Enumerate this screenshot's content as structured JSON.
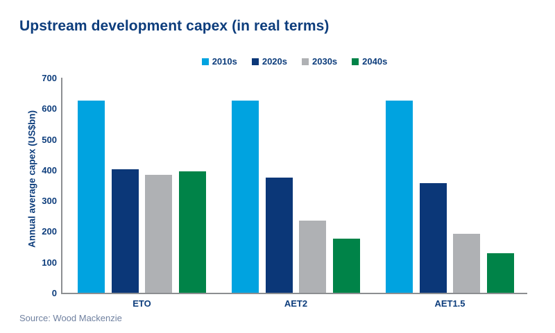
{
  "title": "Upstream development capex (in real terms)",
  "source": "Source: Wood Mackenzie",
  "colors": {
    "series_2010s": "#00A3E0",
    "series_2020s": "#0B3778",
    "series_2030s": "#AFB1B4",
    "series_2040s": "#008348",
    "navy_text": "#0D3D7C",
    "source_text": "#7081A0",
    "axis_line": "#8C8E91"
  },
  "chart_data": {
    "type": "bar",
    "title": "Upstream development capex (in real terms)",
    "categories": [
      "ETO",
      "AET2",
      "AET1.5"
    ],
    "series": [
      {
        "name": "2010s",
        "color_key": "series_2010s",
        "values": [
          627,
          627,
          627
        ]
      },
      {
        "name": "2020s",
        "color_key": "series_2020s",
        "values": [
          405,
          378,
          359
        ]
      },
      {
        "name": "2030s",
        "color_key": "series_2030s",
        "values": [
          387,
          236,
          195
        ]
      },
      {
        "name": "2040s",
        "color_key": "series_2040s",
        "values": [
          398,
          178,
          131
        ]
      }
    ],
    "xlabel": "",
    "ylabel": "Annual average capex (US$bn)",
    "ylim": [
      0,
      700
    ],
    "ytick_step": 100,
    "grid": false,
    "legend_position": "top-center"
  }
}
